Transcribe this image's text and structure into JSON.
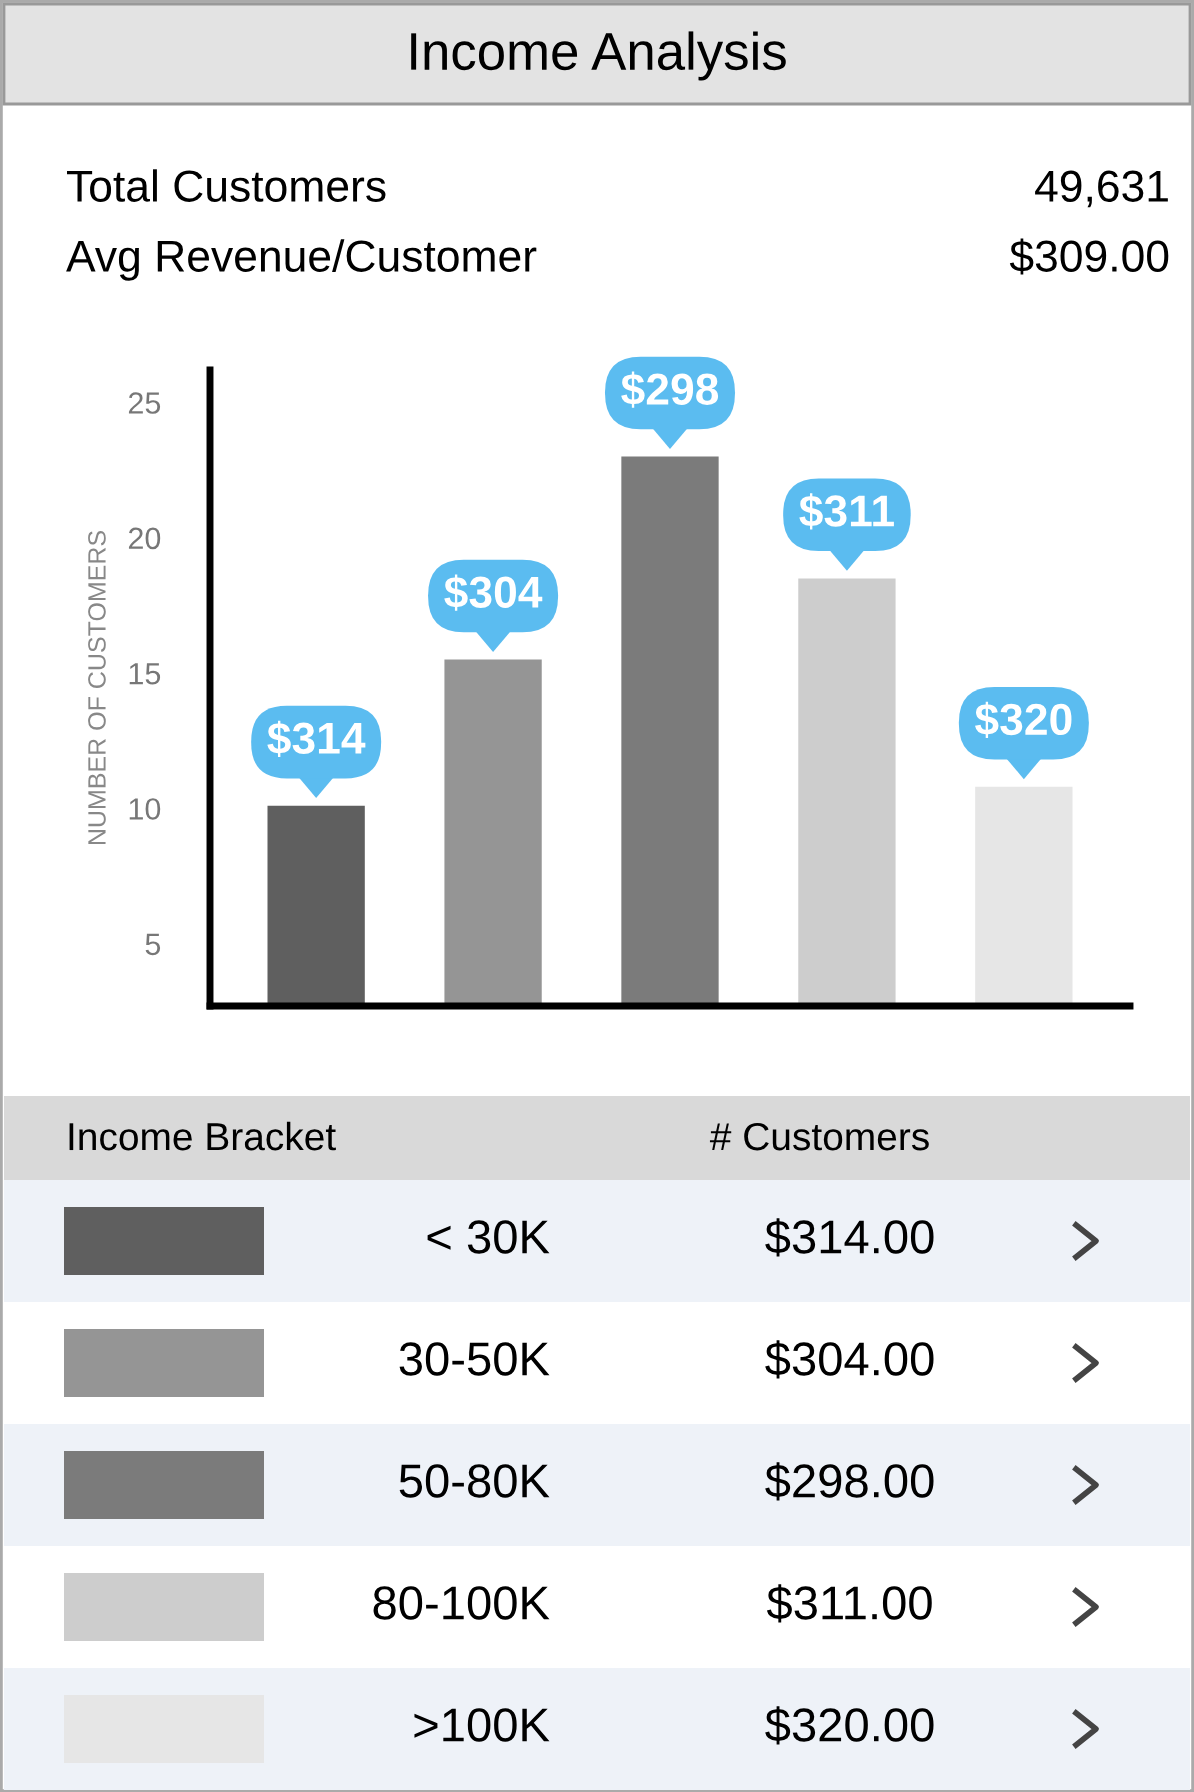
{
  "chart_data": {
    "type": "bar",
    "title": "Income Analysis",
    "ylabel": "NUMBER OF CUSTOMERS",
    "categories": [
      null,
      null,
      null,
      null,
      null
    ],
    "values": [
      10.1,
      15.5,
      23.0,
      18.5,
      10.8
    ],
    "colors": [
      "#5f5f5f",
      "#959595",
      "#7b7b7b",
      "#cdcdcd",
      "#e6e6e6"
    ],
    "ylim": [
      2.7,
      26.2
    ],
    "yticks": [
      5,
      10,
      15,
      20,
      25
    ],
    "grid": false,
    "tick_labels": "y",
    "annotations": [
      "Total Customers",
      "49,631",
      "Avg Revenue/Customer",
      "$309.00",
      "Income Bracket",
      "# Customers",
      "< 30K",
      "$314.00",
      "30-50K",
      "$304.00",
      "50-80K",
      "$298.00",
      "80-100K",
      "$311.00",
      ">100K",
      "$320.00",
      {
        "text": "$314",
        "y": 10.1
      },
      {
        "text": "$304",
        "y": 15.5
      },
      {
        "text": "$298",
        "y": 23.0
      },
      {
        "text": "$311",
        "y": 18.5
      },
      {
        "text": "$320",
        "y": 10.8
      }
    ]
  }
}
